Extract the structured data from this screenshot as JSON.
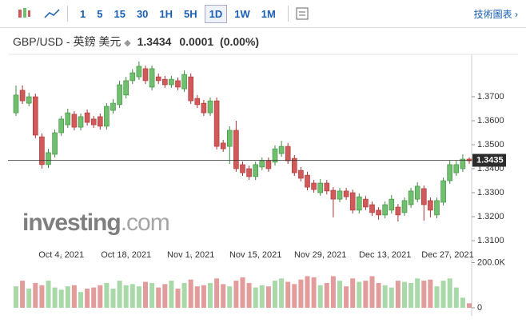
{
  "toolbar": {
    "intervals": [
      "1",
      "5",
      "15",
      "30",
      "1H",
      "5H",
      "1D",
      "1W",
      "1M"
    ],
    "active_interval": "1D",
    "link": "技術圖表 ›"
  },
  "header": {
    "symbol": "GBP/USD - 英鎊 美元",
    "price": "1.3434",
    "change": "0.0001",
    "change_pct": "(0.00%)"
  },
  "chart_data": {
    "type": "candlestick",
    "watermark_brand": "investing",
    "watermark_suffix": ".com",
    "up_color": "#6fbf6f",
    "down_color": "#d05a5a",
    "open": [
      1.3633,
      1.3727,
      1.3673,
      1.37,
      1.3533,
      1.3417,
      1.346,
      1.355,
      1.3583,
      1.3627,
      1.3573,
      1.3633,
      1.3607,
      1.3617,
      1.3577,
      1.3643,
      1.3667,
      1.3707,
      1.3767,
      1.3783,
      1.3817,
      1.374,
      1.3783,
      1.3773,
      1.375,
      1.3767,
      1.3733,
      1.3783,
      1.3693,
      1.3673,
      1.3633,
      1.3683,
      1.3507,
      1.3493,
      1.356,
      1.3417,
      1.34,
      1.3367,
      1.3407,
      1.3433,
      1.3427,
      1.3463,
      1.3493,
      1.3443,
      1.3393,
      1.3373,
      1.334,
      1.33,
      1.334,
      1.331,
      1.3273,
      1.3307,
      1.33,
      1.3227,
      1.3273,
      1.325,
      1.3227,
      1.3207,
      1.3227,
      1.324,
      1.3217,
      1.325,
      1.3273,
      1.3317,
      1.3267,
      1.3207,
      1.326,
      1.335,
      1.3383,
      1.34,
      1.344
    ],
    "high": [
      1.3747,
      1.3747,
      1.3717,
      1.3713,
      1.3547,
      1.3483,
      1.3563,
      1.362,
      1.365,
      1.364,
      1.363,
      1.3647,
      1.362,
      1.363,
      1.3673,
      1.369,
      1.3767,
      1.3783,
      1.3815,
      1.3847,
      1.383,
      1.383,
      1.3797,
      1.3787,
      1.3787,
      1.378,
      1.381,
      1.3797,
      1.3707,
      1.3687,
      1.3697,
      1.3697,
      1.352,
      1.3577,
      1.36,
      1.343,
      1.3413,
      1.343,
      1.3447,
      1.3447,
      1.3497,
      1.3517,
      1.3507,
      1.3457,
      1.3407,
      1.3387,
      1.3353,
      1.3357,
      1.3353,
      1.3323,
      1.332,
      1.332,
      1.3313,
      1.3297,
      1.3287,
      1.3263,
      1.324,
      1.3263,
      1.329,
      1.3253,
      1.328,
      1.332,
      1.3343,
      1.333,
      1.328,
      1.328,
      1.3363,
      1.3433,
      1.3433,
      1.346,
      1.3447
    ],
    "low": [
      1.362,
      1.367,
      1.366,
      1.3527,
      1.34,
      1.3403,
      1.3447,
      1.3537,
      1.357,
      1.356,
      1.356,
      1.358,
      1.357,
      1.3563,
      1.3563,
      1.363,
      1.3653,
      1.3693,
      1.3753,
      1.377,
      1.3753,
      1.3727,
      1.3753,
      1.3737,
      1.3737,
      1.3727,
      1.372,
      1.367,
      1.3653,
      1.362,
      1.362,
      1.348,
      1.347,
      1.342,
      1.3387,
      1.337,
      1.3353,
      1.3353,
      1.3393,
      1.3387,
      1.3413,
      1.345,
      1.342,
      1.337,
      1.3347,
      1.331,
      1.33,
      1.3287,
      1.3293,
      1.3197,
      1.326,
      1.327,
      1.3213,
      1.3213,
      1.3227,
      1.3203,
      1.3187,
      1.3193,
      1.3213,
      1.318,
      1.3203,
      1.3237,
      1.326,
      1.3183,
      1.3197,
      1.3193,
      1.3247,
      1.3337,
      1.337,
      1.3387,
      1.342
    ],
    "close": [
      1.3707,
      1.3683,
      1.37,
      1.354,
      1.3417,
      1.3467,
      1.355,
      1.3607,
      1.3633,
      1.3573,
      1.3617,
      1.3593,
      1.3583,
      1.3577,
      1.366,
      1.3673,
      1.375,
      1.3767,
      1.38,
      1.3827,
      1.3767,
      1.3817,
      1.3767,
      1.375,
      1.3773,
      1.374,
      1.3793,
      1.3683,
      1.3667,
      1.3633,
      1.3683,
      1.3493,
      1.3483,
      1.356,
      1.34,
      1.3383,
      1.3367,
      1.3417,
      1.3433,
      1.34,
      1.3483,
      1.3493,
      1.3433,
      1.3383,
      1.336,
      1.3323,
      1.3313,
      1.334,
      1.3307,
      1.3273,
      1.3307,
      1.3283,
      1.3227,
      1.3283,
      1.324,
      1.3217,
      1.3207,
      1.325,
      1.3273,
      1.3207,
      1.3267,
      1.3307,
      1.3327,
      1.325,
      1.3227,
      1.3267,
      1.335,
      1.3417,
      1.3417,
      1.344,
      1.3433
    ],
    "volume": [
      95000,
      120000,
      85000,
      110000,
      100000,
      120000,
      90000,
      80000,
      95000,
      100000,
      70000,
      85000,
      90000,
      100000,
      110000,
      85000,
      120000,
      100000,
      105000,
      95000,
      115000,
      110000,
      90000,
      105000,
      120000,
      85000,
      110000,
      125000,
      95000,
      100000,
      110000,
      130000,
      105000,
      95000,
      120000,
      135000,
      110000,
      90000,
      100000,
      95000,
      120000,
      130000,
      115000,
      105000,
      125000,
      140000,
      135000,
      100000,
      110000,
      140000,
      120000,
      95000,
      130000,
      115000,
      120000,
      140000,
      110000,
      100000,
      90000,
      120000,
      115000,
      110000,
      130000,
      120000,
      125000,
      95000,
      120000,
      130000,
      90000,
      45000,
      20000
    ],
    "xticks": [
      {
        "value": 7,
        "label": "Oct 4, 2021"
      },
      {
        "value": 17,
        "label": "Oct 18, 2021"
      },
      {
        "value": 27,
        "label": "Nov 1, 2021"
      },
      {
        "value": 37,
        "label": "Nov 15, 2021"
      },
      {
        "value": 47,
        "label": "Nov 29, 2021"
      },
      {
        "value": 57,
        "label": "Dec 13, 2021"
      },
      {
        "value": 67,
        "label": "Dec 27, 2021"
      }
    ],
    "ylim": [
      1.305,
      1.387
    ],
    "yticks": [
      {
        "value": 1.37,
        "label": "1.3700"
      },
      {
        "value": 1.36,
        "label": "1.3600"
      },
      {
        "value": 1.35,
        "label": "1.3500"
      },
      {
        "value": 1.34,
        "label": "1.3400"
      },
      {
        "value": 1.33,
        "label": "1.3300"
      },
      {
        "value": 1.32,
        "label": "1.3200"
      },
      {
        "value": 1.31,
        "label": "1.3100"
      }
    ],
    "last_price": {
      "value": 1.3435,
      "label": "1.3435"
    },
    "volume_lim": [
      0,
      230000
    ],
    "volume_ticks": [
      {
        "value": 200000,
        "label": "200.0K"
      },
      0
    ]
  }
}
